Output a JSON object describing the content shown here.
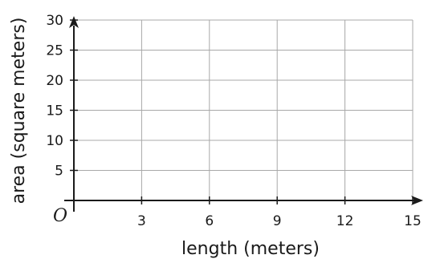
{
  "chart_data": {
    "type": "scatter",
    "title": "",
    "xlabel": "length (meters)",
    "ylabel": "area (square meters)",
    "origin_label": "O",
    "xlim": [
      0,
      15
    ],
    "ylim": [
      0,
      30
    ],
    "x_gridlines": [
      3,
      6,
      9,
      12,
      15
    ],
    "y_gridlines": [
      5,
      10,
      15,
      20,
      25,
      30
    ],
    "x_tick_labels": [
      {
        "value": 3,
        "label": "3"
      },
      {
        "value": 6,
        "label": "6"
      },
      {
        "value": 9,
        "label": "9"
      },
      {
        "value": 12,
        "label": "12"
      },
      {
        "value": 15,
        "label": "15"
      }
    ],
    "y_tick_labels": [
      {
        "value": 5,
        "label": "5"
      },
      {
        "value": 10,
        "label": "10"
      },
      {
        "value": 15,
        "label": "15"
      },
      {
        "value": 20,
        "label": "20"
      },
      {
        "value": 25,
        "label": "25"
      },
      {
        "value": 30,
        "label": "30"
      }
    ],
    "grid": true,
    "axis_arrows": true,
    "series": [],
    "colors": {
      "grid": "#a8a8a8",
      "axis": "#1a1a1a",
      "text": "#1a1a1a"
    }
  }
}
